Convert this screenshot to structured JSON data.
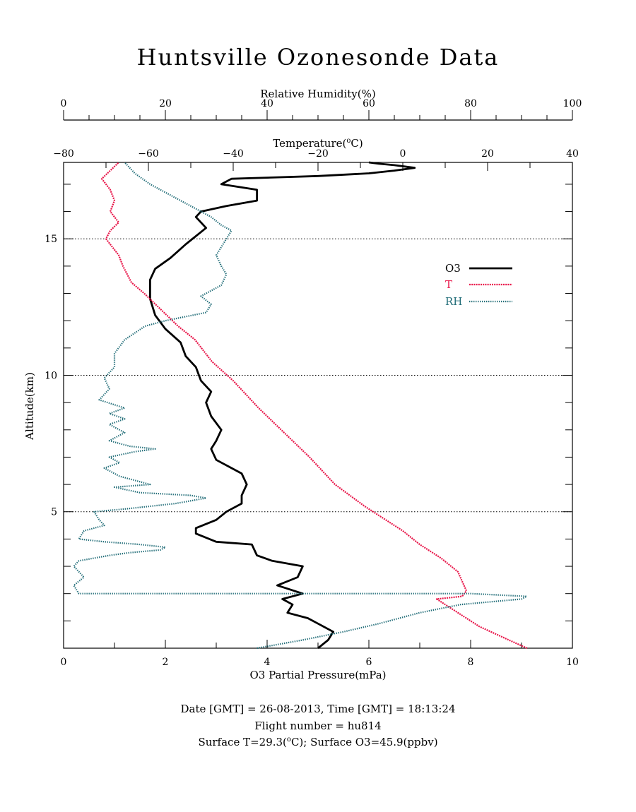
{
  "chart_data": {
    "type": "line",
    "title": "Huntsville Ozonesonde Data",
    "ylabel": "Altitude(km)",
    "ylim": [
      0,
      17.8
    ],
    "yticks_labeled": [
      5,
      10,
      15
    ],
    "axes": {
      "o3": {
        "label": "O3 Partial Pressure(mPa)",
        "range": [
          0,
          10
        ],
        "ticks": [
          0,
          2,
          4,
          6,
          8,
          10
        ]
      },
      "temperature": {
        "label_main": "Temperature(",
        "label_sup": "o",
        "label_tail": "C)",
        "range": [
          -80,
          40
        ],
        "ticks": [
          -80,
          -60,
          -40,
          -20,
          0,
          20,
          40
        ]
      },
      "rh": {
        "label": "Relative Humidity(%)",
        "range": [
          0,
          100
        ],
        "ticks": [
          0,
          20,
          40,
          60,
          80,
          100
        ]
      }
    },
    "grid": {
      "dotted_altitudes": [
        5,
        10,
        15
      ]
    },
    "legend_position": "right, near 13.5 km",
    "legend": [
      {
        "name": "O3",
        "color": "#000000"
      },
      {
        "name": "T",
        "color": "#e8174a"
      },
      {
        "name": "RH",
        "color": "#236e79"
      }
    ],
    "series": [
      {
        "name": "O3",
        "axis": "o3",
        "color": "#000000",
        "points": [
          [
            5.0,
            0.0
          ],
          [
            5.2,
            0.3
          ],
          [
            5.3,
            0.6
          ],
          [
            5.0,
            0.9
          ],
          [
            4.8,
            1.1
          ],
          [
            4.4,
            1.3
          ],
          [
            4.5,
            1.6
          ],
          [
            4.3,
            1.8
          ],
          [
            4.7,
            2.0
          ],
          [
            4.2,
            2.3
          ],
          [
            4.6,
            2.6
          ],
          [
            4.7,
            3.0
          ],
          [
            4.1,
            3.2
          ],
          [
            3.8,
            3.4
          ],
          [
            3.7,
            3.8
          ],
          [
            3.0,
            3.9
          ],
          [
            2.6,
            4.2
          ],
          [
            2.6,
            4.4
          ],
          [
            3.0,
            4.7
          ],
          [
            3.2,
            5.0
          ],
          [
            3.5,
            5.3
          ],
          [
            3.5,
            5.6
          ],
          [
            3.6,
            6.0
          ],
          [
            3.5,
            6.4
          ],
          [
            3.3,
            6.6
          ],
          [
            3.0,
            6.9
          ],
          [
            2.9,
            7.3
          ],
          [
            3.0,
            7.6
          ],
          [
            3.1,
            8.0
          ],
          [
            2.9,
            8.5
          ],
          [
            2.8,
            9.0
          ],
          [
            2.9,
            9.4
          ],
          [
            2.7,
            9.8
          ],
          [
            2.6,
            10.3
          ],
          [
            2.4,
            10.7
          ],
          [
            2.3,
            11.2
          ],
          [
            2.0,
            11.7
          ],
          [
            1.8,
            12.2
          ],
          [
            1.7,
            12.8
          ],
          [
            1.7,
            13.5
          ],
          [
            1.8,
            13.9
          ],
          [
            2.1,
            14.3
          ],
          [
            2.4,
            14.8
          ],
          [
            2.8,
            15.4
          ],
          [
            2.6,
            15.8
          ],
          [
            2.7,
            16.0
          ],
          [
            3.2,
            16.2
          ],
          [
            3.8,
            16.4
          ],
          [
            3.8,
            16.8
          ],
          [
            3.1,
            17.0
          ],
          [
            3.3,
            17.2
          ],
          [
            5.0,
            17.3
          ],
          [
            6.0,
            17.4
          ],
          [
            6.5,
            17.5
          ],
          [
            6.9,
            17.6
          ],
          [
            6.5,
            17.7
          ],
          [
            6.2,
            17.75
          ],
          [
            6.0,
            17.8
          ]
        ]
      },
      {
        "name": "T",
        "axis": "temperature",
        "color": "#e8174a",
        "points": [
          [
            29.3,
            0.0
          ],
          [
            25,
            0.3
          ],
          [
            18,
            0.8
          ],
          [
            15,
            1.1
          ],
          [
            12,
            1.4
          ],
          [
            8,
            1.8
          ],
          [
            14,
            1.9
          ],
          [
            15,
            2.1
          ],
          [
            13,
            2.8
          ],
          [
            9,
            3.3
          ],
          [
            4,
            3.8
          ],
          [
            0,
            4.3
          ],
          [
            -5,
            4.8
          ],
          [
            -9,
            5.2
          ],
          [
            -16,
            6.0
          ],
          [
            -22,
            7.0
          ],
          [
            -28,
            7.9
          ],
          [
            -34,
            8.8
          ],
          [
            -40,
            9.8
          ],
          [
            -45,
            10.5
          ],
          [
            -49,
            11.3
          ],
          [
            -53,
            11.8
          ],
          [
            -57,
            12.4
          ],
          [
            -61,
            13.0
          ],
          [
            -64,
            13.4
          ],
          [
            -66,
            14.0
          ],
          [
            -67,
            14.4
          ],
          [
            -69,
            14.8
          ],
          [
            -70,
            15.0
          ],
          [
            -69,
            15.3
          ],
          [
            -67,
            15.6
          ],
          [
            -69,
            16.0
          ],
          [
            -68,
            16.4
          ],
          [
            -69,
            16.8
          ],
          [
            -70,
            17.0
          ],
          [
            -71,
            17.2
          ],
          [
            -69,
            17.5
          ],
          [
            -67,
            17.8
          ]
        ]
      },
      {
        "name": "RH",
        "axis": "rh",
        "color": "#236e79",
        "points": [
          [
            38,
            0.0
          ],
          [
            47,
            0.3
          ],
          [
            55,
            0.6
          ],
          [
            62,
            0.9
          ],
          [
            70,
            1.3
          ],
          [
            78,
            1.6
          ],
          [
            90,
            1.8
          ],
          [
            91,
            1.9
          ],
          [
            80,
            2.0
          ],
          [
            60,
            2.0
          ],
          [
            3,
            2.0
          ],
          [
            2,
            2.3
          ],
          [
            4,
            2.6
          ],
          [
            2,
            3.0
          ],
          [
            3,
            3.2
          ],
          [
            9,
            3.4
          ],
          [
            13,
            3.5
          ],
          [
            19,
            3.6
          ],
          [
            20,
            3.7
          ],
          [
            15,
            3.8
          ],
          [
            8,
            3.9
          ],
          [
            3,
            4.0
          ],
          [
            4,
            4.3
          ],
          [
            8,
            4.5
          ],
          [
            7,
            4.7
          ],
          [
            6,
            5.0
          ],
          [
            12,
            5.1
          ],
          [
            22,
            5.3
          ],
          [
            28,
            5.5
          ],
          [
            25,
            5.6
          ],
          [
            15,
            5.7
          ],
          [
            10,
            5.9
          ],
          [
            17,
            6.0
          ],
          [
            11,
            6.3
          ],
          [
            8,
            6.6
          ],
          [
            11,
            6.8
          ],
          [
            9,
            7.0
          ],
          [
            14,
            7.2
          ],
          [
            18,
            7.3
          ],
          [
            13,
            7.4
          ],
          [
            9,
            7.6
          ],
          [
            12,
            7.9
          ],
          [
            9,
            8.2
          ],
          [
            12,
            8.4
          ],
          [
            9,
            8.6
          ],
          [
            12,
            8.8
          ],
          [
            7,
            9.1
          ],
          [
            9,
            9.5
          ],
          [
            8,
            9.9
          ],
          [
            10,
            10.3
          ],
          [
            10,
            10.8
          ],
          [
            12,
            11.3
          ],
          [
            16,
            11.8
          ],
          [
            20,
            12.0
          ],
          [
            28,
            12.3
          ],
          [
            29,
            12.6
          ],
          [
            27,
            12.9
          ],
          [
            31,
            13.3
          ],
          [
            32,
            13.7
          ],
          [
            31,
            14.0
          ],
          [
            30,
            14.4
          ],
          [
            32,
            15.0
          ],
          [
            33,
            15.3
          ],
          [
            31,
            15.5
          ],
          [
            29,
            15.8
          ],
          [
            25,
            16.2
          ],
          [
            21,
            16.6
          ],
          [
            17,
            17.0
          ],
          [
            14,
            17.4
          ],
          [
            12,
            17.8
          ]
        ]
      }
    ]
  },
  "footer": {
    "line1": "Date [GMT] = 26-08-2013,  Time [GMT] = 18:13:24",
    "line2": "Flight number = hu814",
    "line3_prefix": "Surface T=29.3(",
    "line3_sup": "o",
    "line3_suffix": "C); Surface O3=45.9(ppbv)"
  }
}
